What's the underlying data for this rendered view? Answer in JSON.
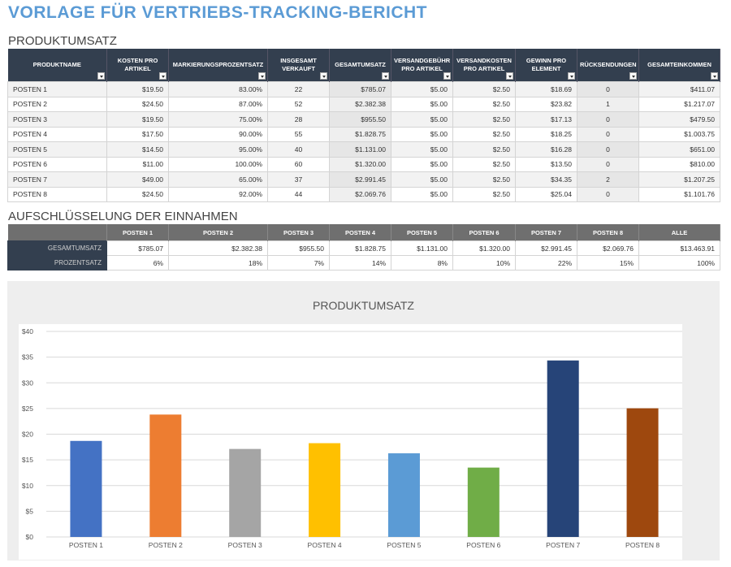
{
  "page": {
    "title": "VORLAGE FÜR VERTRIEBS-TRACKING-BERICHT",
    "section_sales": "PRODUKTUMSATZ",
    "section_breakdown": "AUFSCHLÜSSELUNG DER EINNAHMEN"
  },
  "product_table": {
    "headers": [
      "PRODUKTNAME",
      "KOSTEN PRO ARTIKEL",
      "MARKIERUNGSPROZENTSATZ",
      "INSGESAMT VERKAUFT",
      "GESAMTUMSATZ",
      "VERSANDGEBÜHR PRO ARTIKEL",
      "VERSANDKOSTEN PRO ARTIKEL",
      "GEWINN PRO ELEMENT",
      "RÜCKSENDUNGEN",
      "GESAMTEINKOMMEN"
    ],
    "rows": [
      [
        "POSTEN 1",
        "$19.50",
        "83.00%",
        "22",
        "$785.07",
        "$5.00",
        "$2.50",
        "$18.69",
        "0",
        "$411.07"
      ],
      [
        "POSTEN 2",
        "$24.50",
        "87.00%",
        "52",
        "$2.382.38",
        "$5.00",
        "$2.50",
        "$23.82",
        "1",
        "$1.217.07"
      ],
      [
        "POSTEN 3",
        "$19.50",
        "75.00%",
        "28",
        "$955.50",
        "$5.00",
        "$2.50",
        "$17.13",
        "0",
        "$479.50"
      ],
      [
        "POSTEN 4",
        "$17.50",
        "90.00%",
        "55",
        "$1.828.75",
        "$5.00",
        "$2.50",
        "$18.25",
        "0",
        "$1.003.75"
      ],
      [
        "POSTEN 5",
        "$14.50",
        "95.00%",
        "40",
        "$1.131.00",
        "$5.00",
        "$2.50",
        "$16.28",
        "0",
        "$651.00"
      ],
      [
        "POSTEN 6",
        "$11.00",
        "100.00%",
        "60",
        "$1.320.00",
        "$5.00",
        "$2.50",
        "$13.50",
        "0",
        "$810.00"
      ],
      [
        "POSTEN 7",
        "$49.00",
        "65.00%",
        "37",
        "$2.991.45",
        "$5.00",
        "$2.50",
        "$34.35",
        "2",
        "$1.207.25"
      ],
      [
        "POSTEN 8",
        "$24.50",
        "92.00%",
        "44",
        "$2.069.76",
        "$5.00",
        "$2.50",
        "$25.04",
        "0",
        "$1.101.76"
      ]
    ]
  },
  "revenue_table": {
    "headers": [
      "POSTEN 1",
      "POSTEN 2",
      "POSTEN 3",
      "POSTEN 4",
      "POSTEN 5",
      "POSTEN 6",
      "POSTEN 7",
      "POSTEN 8",
      "ALLE"
    ],
    "rows": [
      {
        "label": "GESAMTUMSATZ",
        "values": [
          "$785.07",
          "$2.382.38",
          "$955.50",
          "$1.828.75",
          "$1.131.00",
          "$1.320.00",
          "$2.991.45",
          "$2.069.76",
          "$13.463.91"
        ]
      },
      {
        "label": "PROZENTSATZ",
        "values": [
          "6%",
          "18%",
          "7%",
          "14%",
          "8%",
          "10%",
          "22%",
          "15%",
          "100%"
        ]
      }
    ]
  },
  "chart_data": {
    "type": "bar",
    "title": "PRODUKTUMSATZ",
    "categories": [
      "POSTEN 1",
      "POSTEN 2",
      "POSTEN 3",
      "POSTEN 4",
      "POSTEN 5",
      "POSTEN 6",
      "POSTEN 7",
      "POSTEN 8"
    ],
    "values": [
      18.69,
      23.82,
      17.13,
      18.25,
      16.28,
      13.5,
      34.35,
      25.04
    ],
    "colors": [
      "#4472c4",
      "#ed7d31",
      "#a5a5a5",
      "#ffc000",
      "#5b9bd5",
      "#70ad47",
      "#264478",
      "#9e480e"
    ],
    "ylim": [
      0,
      40
    ],
    "yticks": [
      "$0",
      "$5",
      "$10",
      "$15",
      "$20",
      "$25",
      "$30",
      "$35",
      "$40"
    ],
    "grid": true,
    "legend": "none"
  }
}
